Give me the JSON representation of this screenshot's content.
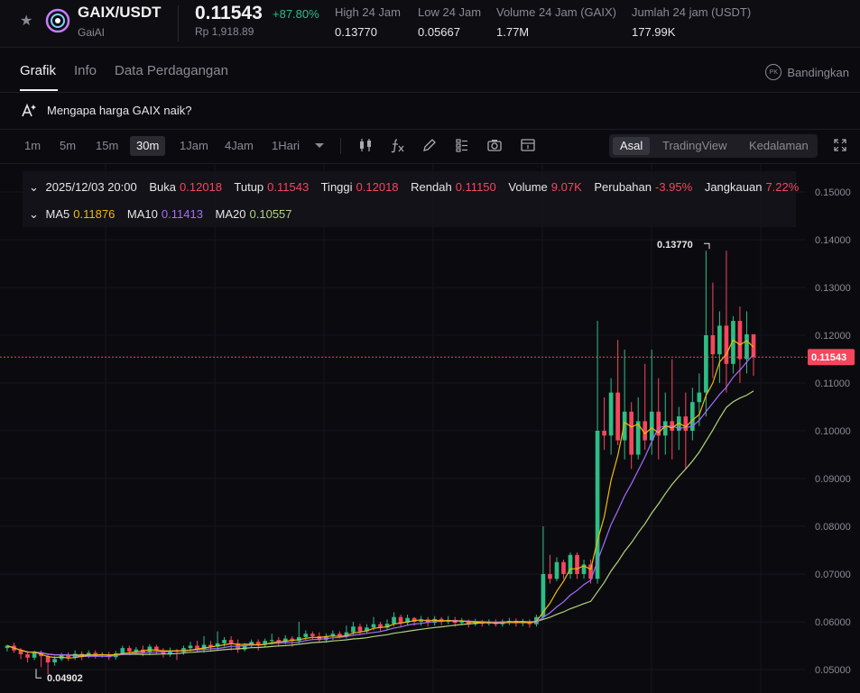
{
  "header": {
    "pair": "GAIX/USDT",
    "name": "GaiAI",
    "price": "0.11543",
    "change": "+87.80%",
    "price_idr": "Rp 1,918.89",
    "stats": [
      {
        "label": "High 24 Jam",
        "value": "0.13770"
      },
      {
        "label": "Low 24 Jam",
        "value": "0.05667"
      },
      {
        "label": "Volume 24 Jam (GAIX)",
        "value": "1.77M"
      },
      {
        "label": "Jumlah 24 jam (USDT)",
        "value": "177.99K"
      }
    ]
  },
  "tabs": [
    "Grafik",
    "Info",
    "Data Perdagangan"
  ],
  "compare": {
    "badge": "PK",
    "label": "Bandingkan"
  },
  "why": {
    "text": "Mengapa harga GAIX naik?"
  },
  "timeframes": [
    "1m",
    "5m",
    "15m",
    "30m",
    "1Jam",
    "4Jam",
    "1Hari"
  ],
  "active_timeframe": "30m",
  "views": [
    "Asal",
    "TradingView",
    "Kedalaman"
  ],
  "active_view": "Asal",
  "icons": [
    "candlestick-icon",
    "formula-icon",
    "pencil-icon",
    "layout-icon",
    "camera-icon",
    "calendar-icon",
    "fullscreen-icon"
  ],
  "ohlc": {
    "date": "2025/12/03 20:00",
    "open_label": "Buka",
    "open": "0.12018",
    "close_label": "Tutup",
    "close": "0.11543",
    "high_label": "Tinggi",
    "high": "0.12018",
    "low_label": "Rendah",
    "low": "0.11150",
    "volume_label": "Volume",
    "volume": "9.07K",
    "change_label": "Perubahan",
    "change": "-3.95%",
    "range_label": "Jangkauan",
    "range": "7.22%"
  },
  "ma": [
    {
      "label": "MA5",
      "value": "0.11876",
      "color": "#f0b90b"
    },
    {
      "label": "MA10",
      "value": "0.11413",
      "color": "#a66bff"
    },
    {
      "label": "MA20",
      "value": "0.10557",
      "color": "#b3d47a"
    }
  ],
  "colors": {
    "up": "#2ebd85",
    "down": "#f6465d",
    "accent_green": "#2ebd85"
  },
  "chart_data": {
    "type": "candlestick",
    "ylim": [
      0.048,
      0.152
    ],
    "y_ticks": [
      "0.15000",
      "0.14000",
      "0.13000",
      "0.12000",
      "0.11000",
      "0.10000",
      "0.09000",
      "0.08000",
      "0.07000",
      "0.06000",
      "0.05000"
    ],
    "current_price": "0.11543",
    "high_marker": "0.13770",
    "low_marker": "0.04902",
    "candles": [
      [
        0.0545,
        0.055,
        0.0538,
        0.0552
      ],
      [
        0.055,
        0.054,
        0.0535,
        0.0556
      ],
      [
        0.054,
        0.0532,
        0.0522,
        0.0545
      ],
      [
        0.0532,
        0.0525,
        0.0515,
        0.0538
      ],
      [
        0.0525,
        0.0536,
        0.052,
        0.054
      ],
      [
        0.0536,
        0.0528,
        0.0505,
        0.054
      ],
      [
        0.0528,
        0.0515,
        0.049,
        0.0532
      ],
      [
        0.0515,
        0.0522,
        0.0508,
        0.0528
      ],
      [
        0.0522,
        0.053,
        0.0518,
        0.0535
      ],
      [
        0.053,
        0.0525,
        0.0518,
        0.0536
      ],
      [
        0.0525,
        0.0533,
        0.052,
        0.054
      ],
      [
        0.0533,
        0.0528,
        0.052,
        0.0538
      ],
      [
        0.0528,
        0.0535,
        0.0524,
        0.054
      ],
      [
        0.0535,
        0.053,
        0.0523,
        0.054
      ],
      [
        0.053,
        0.0532,
        0.0525,
        0.0536
      ],
      [
        0.0532,
        0.0526,
        0.052,
        0.0537
      ],
      [
        0.0526,
        0.0534,
        0.0521,
        0.0539
      ],
      [
        0.0534,
        0.0545,
        0.053,
        0.055
      ],
      [
        0.0545,
        0.0538,
        0.053,
        0.055
      ],
      [
        0.0538,
        0.0542,
        0.0532,
        0.0547
      ],
      [
        0.0542,
        0.0535,
        0.0528,
        0.055
      ],
      [
        0.0535,
        0.0548,
        0.053,
        0.0553
      ],
      [
        0.0548,
        0.054,
        0.0533,
        0.0552
      ],
      [
        0.054,
        0.0532,
        0.0525,
        0.0545
      ],
      [
        0.0532,
        0.054,
        0.0527,
        0.0546
      ],
      [
        0.054,
        0.0537,
        0.052,
        0.0543
      ],
      [
        0.0537,
        0.0545,
        0.0531,
        0.055
      ],
      [
        0.0545,
        0.055,
        0.0538,
        0.0558
      ],
      [
        0.055,
        0.0542,
        0.0538,
        0.056
      ],
      [
        0.0542,
        0.0552,
        0.0535,
        0.057
      ],
      [
        0.0552,
        0.0548,
        0.054,
        0.056
      ],
      [
        0.0548,
        0.0555,
        0.054,
        0.058
      ],
      [
        0.0555,
        0.0562,
        0.0548,
        0.0568
      ],
      [
        0.0562,
        0.0555,
        0.054,
        0.057
      ],
      [
        0.0555,
        0.0542,
        0.0535,
        0.0563
      ],
      [
        0.0542,
        0.055,
        0.0538,
        0.0556
      ],
      [
        0.055,
        0.0558,
        0.0545,
        0.0563
      ],
      [
        0.0558,
        0.0552,
        0.054,
        0.0563
      ],
      [
        0.0552,
        0.056,
        0.0548,
        0.0565
      ],
      [
        0.056,
        0.0562,
        0.0552,
        0.0575
      ],
      [
        0.0562,
        0.0558,
        0.0548,
        0.0568
      ],
      [
        0.0558,
        0.0565,
        0.0553,
        0.0572
      ],
      [
        0.0565,
        0.056,
        0.0548,
        0.057
      ],
      [
        0.056,
        0.0568,
        0.0555,
        0.06
      ],
      [
        0.0568,
        0.0575,
        0.056,
        0.0582
      ],
      [
        0.0575,
        0.057,
        0.0562,
        0.058
      ],
      [
        0.057,
        0.0562,
        0.0557,
        0.0578
      ],
      [
        0.0562,
        0.057,
        0.0556,
        0.0576
      ],
      [
        0.057,
        0.0575,
        0.0562,
        0.0582
      ],
      [
        0.0575,
        0.057,
        0.0565,
        0.058
      ],
      [
        0.057,
        0.0578,
        0.0565,
        0.0592
      ],
      [
        0.0578,
        0.059,
        0.0572,
        0.06
      ],
      [
        0.059,
        0.058,
        0.0572,
        0.0596
      ],
      [
        0.058,
        0.0588,
        0.0575,
        0.0595
      ],
      [
        0.0588,
        0.0595,
        0.0582,
        0.061
      ],
      [
        0.0595,
        0.0588,
        0.058,
        0.06
      ],
      [
        0.0588,
        0.0596,
        0.0583,
        0.0605
      ],
      [
        0.0596,
        0.061,
        0.059,
        0.062
      ],
      [
        0.061,
        0.0598,
        0.059,
        0.0615
      ],
      [
        0.0598,
        0.0608,
        0.0593,
        0.0615
      ],
      [
        0.0608,
        0.06,
        0.0592,
        0.061
      ],
      [
        0.06,
        0.0605,
        0.0592,
        0.0612
      ],
      [
        0.0605,
        0.0598,
        0.059,
        0.061
      ],
      [
        0.0598,
        0.0606,
        0.0592,
        0.0612
      ],
      [
        0.0606,
        0.06,
        0.0593,
        0.061
      ],
      [
        0.06,
        0.0604,
        0.0595,
        0.0612
      ],
      [
        0.0604,
        0.0598,
        0.059,
        0.061
      ],
      [
        0.0598,
        0.0602,
        0.0593,
        0.0608
      ],
      [
        0.0602,
        0.0595,
        0.0588,
        0.0605
      ],
      [
        0.0595,
        0.06,
        0.0591,
        0.0606
      ],
      [
        0.06,
        0.0596,
        0.059,
        0.0604
      ],
      [
        0.0596,
        0.0599,
        0.0592,
        0.0605
      ],
      [
        0.0599,
        0.0595,
        0.059,
        0.0605
      ],
      [
        0.0595,
        0.06,
        0.059,
        0.0605
      ],
      [
        0.06,
        0.0602,
        0.0593,
        0.0608
      ],
      [
        0.0602,
        0.0597,
        0.059,
        0.0607
      ],
      [
        0.0597,
        0.06,
        0.0591,
        0.0606
      ],
      [
        0.06,
        0.0595,
        0.0588,
        0.0605
      ],
      [
        0.0595,
        0.061,
        0.059,
        0.0615
      ],
      [
        0.061,
        0.07,
        0.0606,
        0.08
      ],
      [
        0.07,
        0.069,
        0.068,
        0.074
      ],
      [
        0.069,
        0.0725,
        0.0685,
        0.0735
      ],
      [
        0.0725,
        0.07,
        0.069,
        0.073
      ],
      [
        0.07,
        0.074,
        0.069,
        0.0745
      ],
      [
        0.074,
        0.07,
        0.069,
        0.0745
      ],
      [
        0.07,
        0.072,
        0.069,
        0.073
      ],
      [
        0.072,
        0.069,
        0.068,
        0.073
      ],
      [
        0.069,
        0.1,
        0.068,
        0.123
      ],
      [
        0.1,
        0.099,
        0.096,
        0.107
      ],
      [
        0.099,
        0.108,
        0.095,
        0.111
      ],
      [
        0.108,
        0.098,
        0.097,
        0.119
      ],
      [
        0.098,
        0.104,
        0.094,
        0.117
      ],
      [
        0.104,
        0.095,
        0.092,
        0.106
      ],
      [
        0.095,
        0.102,
        0.094,
        0.107
      ],
      [
        0.102,
        0.098,
        0.096,
        0.114
      ],
      [
        0.098,
        0.104,
        0.095,
        0.117
      ],
      [
        0.104,
        0.099,
        0.094,
        0.111
      ],
      [
        0.099,
        0.102,
        0.095,
        0.108
      ],
      [
        0.102,
        0.1,
        0.094,
        0.115
      ],
      [
        0.1,
        0.103,
        0.096,
        0.105
      ],
      [
        0.103,
        0.1,
        0.092,
        0.108
      ],
      [
        0.1,
        0.106,
        0.098,
        0.109
      ],
      [
        0.106,
        0.108,
        0.101,
        0.112
      ],
      [
        0.108,
        0.12,
        0.103,
        0.1377
      ],
      [
        0.12,
        0.116,
        0.111,
        0.131
      ],
      [
        0.116,
        0.122,
        0.11,
        0.125
      ],
      [
        0.122,
        0.114,
        0.108,
        0.1377
      ],
      [
        0.114,
        0.123,
        0.112,
        0.124
      ],
      [
        0.123,
        0.115,
        0.11,
        0.126
      ],
      [
        0.115,
        0.1202,
        0.112,
        0.125
      ],
      [
        0.1202,
        0.1154,
        0.1115,
        0.1202
      ]
    ]
  }
}
